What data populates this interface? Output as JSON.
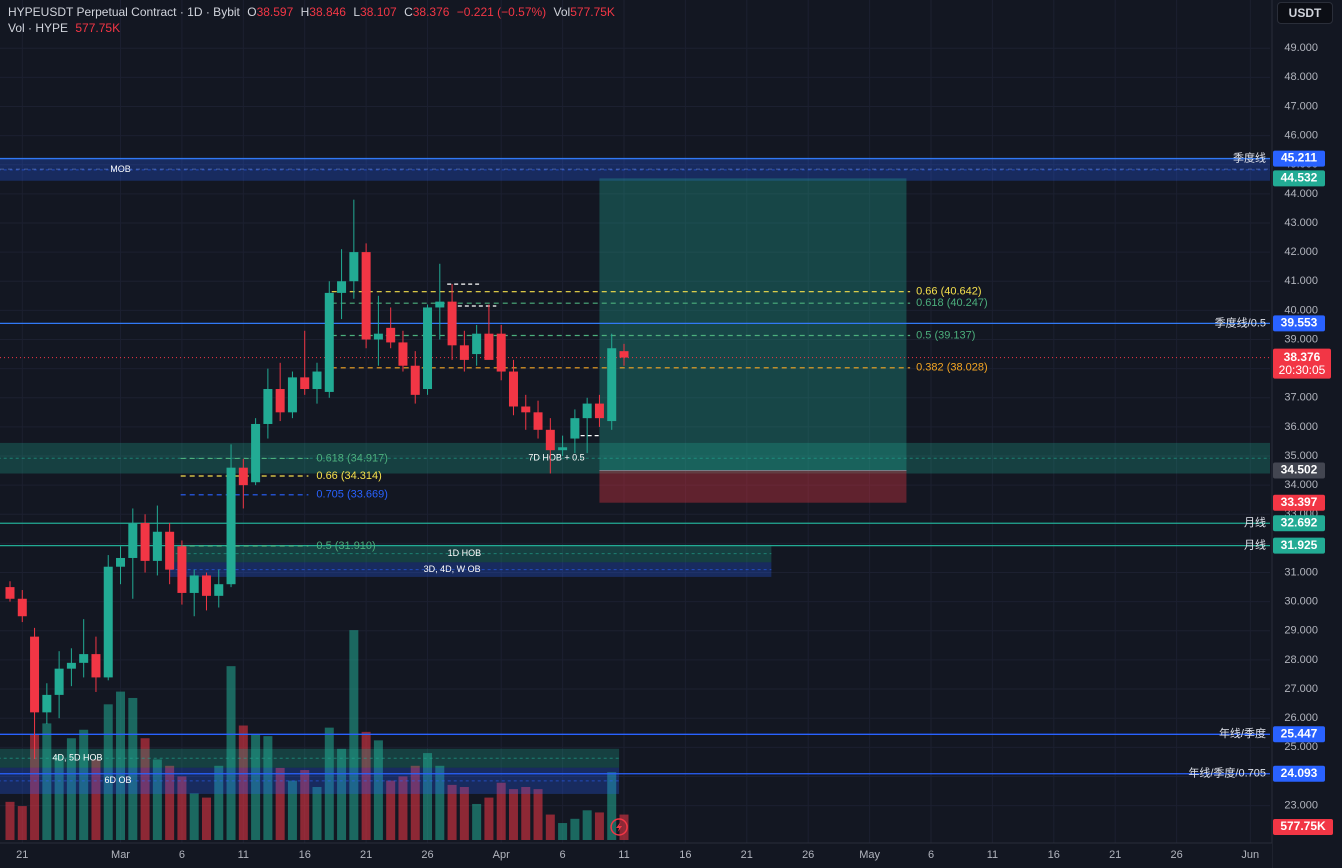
{
  "header": {
    "symbol": "HYPEUSDT Perpetual Contract · 1D · Bybit",
    "open_label": "O",
    "open": "38.597",
    "high_label": "H",
    "high": "38.846",
    "low_label": "L",
    "low": "38.107",
    "close_label": "C",
    "close": "38.376",
    "change": "−0.221 (−0.57%)",
    "vol_label": "Vol",
    "vol": "577.75K",
    "vol_series": "Vol · HYPE",
    "vol_series_value": "577.75K"
  },
  "currency_button": "USDT",
  "colors": {
    "up": "#22ab94",
    "down": "#f23645",
    "background": "#131722",
    "blue_line": "#3179f5",
    "green_line": "#22ab94",
    "fib_yellow": "#f5e04c",
    "fib_orange": "#f5a623",
    "fib_green": "#4caf7d",
    "fib_blue": "#2962ff"
  },
  "chart_data": {
    "type": "candlestick",
    "timeframe": "1D",
    "y_axis": {
      "min": 23,
      "max": 49.5,
      "ticks": [
        "49.000",
        "48.000",
        "47.000",
        "46.000",
        "45.000",
        "44.000",
        "43.000",
        "42.000",
        "41.000",
        "40.000",
        "39.000",
        "38.000",
        "37.000",
        "36.000",
        "35.000",
        "34.000",
        "33.000",
        "32.000",
        "31.000",
        "30.000",
        "29.000",
        "28.000",
        "27.000",
        "26.000",
        "25.000",
        "24.000",
        "23.000"
      ]
    },
    "x_axis": {
      "start_date": "2025-02-20",
      "ticks": [
        {
          "d": 1,
          "label": "21"
        },
        {
          "d": 9,
          "label": "Mar"
        },
        {
          "d": 14,
          "label": "6"
        },
        {
          "d": 19,
          "label": "11"
        },
        {
          "d": 24,
          "label": "16"
        },
        {
          "d": 29,
          "label": "21"
        },
        {
          "d": 34,
          "label": "26"
        },
        {
          "d": 40,
          "label": "Apr"
        },
        {
          "d": 45,
          "label": "6"
        },
        {
          "d": 50,
          "label": "11"
        },
        {
          "d": 55,
          "label": "16"
        },
        {
          "d": 60,
          "label": "21"
        },
        {
          "d": 65,
          "label": "26"
        },
        {
          "d": 70,
          "label": "May"
        },
        {
          "d": 75,
          "label": "6"
        },
        {
          "d": 80,
          "label": "11"
        },
        {
          "d": 85,
          "label": "16"
        },
        {
          "d": 90,
          "label": "21"
        },
        {
          "d": 95,
          "label": "26"
        },
        {
          "d": 101,
          "label": "Jun"
        }
      ]
    },
    "candles": [
      {
        "d": 0,
        "o": 30.5,
        "h": 30.7,
        "l": 30.0,
        "c": 30.1
      },
      {
        "d": 1,
        "o": 30.1,
        "h": 30.4,
        "l": 29.3,
        "c": 29.5
      },
      {
        "d": 2,
        "o": 28.8,
        "h": 29.1,
        "l": 24.6,
        "c": 26.2
      },
      {
        "d": 3,
        "o": 26.2,
        "h": 27.2,
        "l": 25.8,
        "c": 26.8
      },
      {
        "d": 4,
        "o": 26.8,
        "h": 28.3,
        "l": 26.0,
        "c": 27.7
      },
      {
        "d": 5,
        "o": 27.7,
        "h": 28.4,
        "l": 27.1,
        "c": 27.9
      },
      {
        "d": 6,
        "o": 27.9,
        "h": 29.4,
        "l": 27.4,
        "c": 28.2
      },
      {
        "d": 7,
        "o": 28.2,
        "h": 28.8,
        "l": 26.9,
        "c": 27.4
      },
      {
        "d": 8,
        "o": 27.4,
        "h": 31.6,
        "l": 27.3,
        "c": 31.2
      },
      {
        "d": 9,
        "o": 31.2,
        "h": 31.9,
        "l": 30.6,
        "c": 31.5
      },
      {
        "d": 10,
        "o": 31.5,
        "h": 33.2,
        "l": 30.1,
        "c": 32.7
      },
      {
        "d": 11,
        "o": 32.7,
        "h": 33.0,
        "l": 31.0,
        "c": 31.4
      },
      {
        "d": 12,
        "o": 31.4,
        "h": 33.3,
        "l": 30.9,
        "c": 32.4
      },
      {
        "d": 13,
        "o": 32.4,
        "h": 32.7,
        "l": 30.6,
        "c": 31.1
      },
      {
        "d": 14,
        "o": 31.9,
        "h": 32.1,
        "l": 29.9,
        "c": 30.3
      },
      {
        "d": 15,
        "o": 30.3,
        "h": 31.1,
        "l": 29.5,
        "c": 30.9
      },
      {
        "d": 16,
        "o": 30.9,
        "h": 31.0,
        "l": 29.7,
        "c": 30.2
      },
      {
        "d": 17,
        "o": 30.2,
        "h": 31.1,
        "l": 29.8,
        "c": 30.6
      },
      {
        "d": 18,
        "o": 30.6,
        "h": 35.4,
        "l": 30.5,
        "c": 34.6
      },
      {
        "d": 19,
        "o": 34.6,
        "h": 34.9,
        "l": 33.2,
        "c": 34.0
      },
      {
        "d": 20,
        "o": 34.1,
        "h": 36.3,
        "l": 34.0,
        "c": 36.1
      },
      {
        "d": 21,
        "o": 36.1,
        "h": 38.0,
        "l": 35.6,
        "c": 37.3
      },
      {
        "d": 22,
        "o": 37.3,
        "h": 38.2,
        "l": 36.2,
        "c": 36.5
      },
      {
        "d": 23,
        "o": 36.5,
        "h": 37.9,
        "l": 36.3,
        "c": 37.7
      },
      {
        "d": 24,
        "o": 37.7,
        "h": 39.3,
        "l": 37.1,
        "c": 37.3
      },
      {
        "d": 25,
        "o": 37.3,
        "h": 38.2,
        "l": 36.8,
        "c": 37.9
      },
      {
        "d": 26,
        "o": 37.2,
        "h": 41.0,
        "l": 37.0,
        "c": 40.6
      },
      {
        "d": 27,
        "o": 40.6,
        "h": 42.1,
        "l": 39.7,
        "c": 41.0
      },
      {
        "d": 28,
        "o": 41.0,
        "h": 43.8,
        "l": 40.4,
        "c": 42.0
      },
      {
        "d": 29,
        "o": 42.0,
        "h": 42.3,
        "l": 38.7,
        "c": 39.0
      },
      {
        "d": 30,
        "o": 39.0,
        "h": 40.5,
        "l": 38.1,
        "c": 39.2
      },
      {
        "d": 31,
        "o": 39.4,
        "h": 40.1,
        "l": 38.7,
        "c": 38.9
      },
      {
        "d": 32,
        "o": 38.9,
        "h": 39.3,
        "l": 37.9,
        "c": 38.1
      },
      {
        "d": 33,
        "o": 38.1,
        "h": 38.6,
        "l": 36.8,
        "c": 37.1
      },
      {
        "d": 34,
        "o": 37.3,
        "h": 40.2,
        "l": 37.1,
        "c": 40.1
      },
      {
        "d": 35,
        "o": 40.1,
        "h": 41.6,
        "l": 39.0,
        "c": 40.3
      },
      {
        "d": 36,
        "o": 40.3,
        "h": 40.9,
        "l": 38.3,
        "c": 38.8
      },
      {
        "d": 37,
        "o": 38.8,
        "h": 39.3,
        "l": 37.9,
        "c": 38.3
      },
      {
        "d": 38,
        "o": 38.5,
        "h": 39.5,
        "l": 38.1,
        "c": 39.2
      },
      {
        "d": 39,
        "o": 39.2,
        "h": 40.2,
        "l": 38.4,
        "c": 38.3
      },
      {
        "d": 40,
        "o": 39.2,
        "h": 39.5,
        "l": 37.6,
        "c": 37.9
      },
      {
        "d": 41,
        "o": 37.9,
        "h": 38.3,
        "l": 36.4,
        "c": 36.7
      },
      {
        "d": 42,
        "o": 36.7,
        "h": 37.1,
        "l": 35.9,
        "c": 36.5
      },
      {
        "d": 43,
        "o": 36.5,
        "h": 36.9,
        "l": 35.6,
        "c": 35.9
      },
      {
        "d": 44,
        "o": 35.9,
        "h": 36.3,
        "l": 34.4,
        "c": 35.2
      },
      {
        "d": 45,
        "o": 35.2,
        "h": 35.7,
        "l": 35.0,
        "c": 35.3
      },
      {
        "d": 46,
        "o": 35.6,
        "h": 36.6,
        "l": 35.1,
        "c": 36.3
      },
      {
        "d": 47,
        "o": 36.3,
        "h": 37.0,
        "l": 35.1,
        "c": 36.8
      },
      {
        "d": 48,
        "o": 36.8,
        "h": 37.1,
        "l": 36.0,
        "c": 36.3
      },
      {
        "d": 49,
        "o": 36.2,
        "h": 39.2,
        "l": 35.9,
        "c": 38.7
      },
      {
        "d": 50,
        "o": 38.6,
        "h": 38.85,
        "l": 38.1,
        "c": 38.38
      }
    ],
    "volume": [
      {
        "d": 0,
        "v": 0.18
      },
      {
        "d": 1,
        "v": 0.16
      },
      {
        "d": 2,
        "v": 0.5
      },
      {
        "d": 3,
        "v": 0.55
      },
      {
        "d": 4,
        "v": 0.4
      },
      {
        "d": 5,
        "v": 0.48
      },
      {
        "d": 6,
        "v": 0.52
      },
      {
        "d": 7,
        "v": 0.38
      },
      {
        "d": 8,
        "v": 0.64
      },
      {
        "d": 9,
        "v": 0.7
      },
      {
        "d": 10,
        "v": 0.67
      },
      {
        "d": 11,
        "v": 0.48
      },
      {
        "d": 12,
        "v": 0.38
      },
      {
        "d": 13,
        "v": 0.35
      },
      {
        "d": 14,
        "v": 0.3
      },
      {
        "d": 15,
        "v": 0.22
      },
      {
        "d": 16,
        "v": 0.2
      },
      {
        "d": 17,
        "v": 0.35
      },
      {
        "d": 18,
        "v": 0.82
      },
      {
        "d": 19,
        "v": 0.54
      },
      {
        "d": 20,
        "v": 0.5
      },
      {
        "d": 21,
        "v": 0.49
      },
      {
        "d": 22,
        "v": 0.34
      },
      {
        "d": 23,
        "v": 0.28
      },
      {
        "d": 24,
        "v": 0.33
      },
      {
        "d": 25,
        "v": 0.25
      },
      {
        "d": 26,
        "v": 0.53
      },
      {
        "d": 27,
        "v": 0.43
      },
      {
        "d": 28,
        "v": 0.99
      },
      {
        "d": 29,
        "v": 0.51
      },
      {
        "d": 30,
        "v": 0.47
      },
      {
        "d": 31,
        "v": 0.28
      },
      {
        "d": 32,
        "v": 0.3
      },
      {
        "d": 33,
        "v": 0.35
      },
      {
        "d": 34,
        "v": 0.41
      },
      {
        "d": 35,
        "v": 0.35
      },
      {
        "d": 36,
        "v": 0.26
      },
      {
        "d": 37,
        "v": 0.25
      },
      {
        "d": 38,
        "v": 0.17
      },
      {
        "d": 39,
        "v": 0.2
      },
      {
        "d": 40,
        "v": 0.27
      },
      {
        "d": 41,
        "v": 0.24
      },
      {
        "d": 42,
        "v": 0.25
      },
      {
        "d": 43,
        "v": 0.24
      },
      {
        "d": 44,
        "v": 0.12
      },
      {
        "d": 45,
        "v": 0.08
      },
      {
        "d": 46,
        "v": 0.1
      },
      {
        "d": 47,
        "v": 0.14
      },
      {
        "d": 48,
        "v": 0.13
      },
      {
        "d": 49,
        "v": 0.32
      },
      {
        "d": 50,
        "v": 0.12
      }
    ],
    "horizontal_lines": [
      {
        "price": 45.211,
        "label": "季度线",
        "color": "#3179f5",
        "dash": false,
        "price_tag": "45.211"
      },
      {
        "price": 39.553,
        "label": "季度线/0.5",
        "color": "#3179f5",
        "dash": false,
        "price_tag": "39.553"
      },
      {
        "price": 32.692,
        "label": "月线",
        "color": "#22ab94",
        "dash": false,
        "price_tag": "32.692"
      },
      {
        "price": 31.925,
        "label": "月线",
        "color": "#22ab94",
        "dash": false,
        "price_tag": "31.925"
      },
      {
        "price": 25.447,
        "label": "年线/季度",
        "color": "#2962ff",
        "dash": false,
        "price_tag": "25.447"
      },
      {
        "price": 24.093,
        "label": "年线/季度/0.705",
        "color": "#2962ff",
        "dash": false,
        "price_tag": "24.093"
      }
    ],
    "fib_levels": [
      {
        "price": 40.642,
        "label": "0.66 (40.642)",
        "color": "#f5e04c",
        "d0": 26.2,
        "d1": 73.3
      },
      {
        "price": 40.247,
        "label": "0.618 (40.247)",
        "color": "#4caf7d",
        "d0": 26.2,
        "d1": 73.3
      },
      {
        "price": 39.137,
        "label": "0.5 (39.137)",
        "color": "#4caf7d",
        "d0": 26.2,
        "d1": 73.3
      },
      {
        "price": 38.028,
        "label": "0.382 (38.028)",
        "color": "#f5a623",
        "d0": 26.2,
        "d1": 73.3
      },
      {
        "price": 34.917,
        "label": "0.618 (34.917)",
        "color": "#4caf7d",
        "d0": 13.9,
        "d1": 24.3
      },
      {
        "price": 34.314,
        "label": "0.66 (34.314)",
        "color": "#f5e04c",
        "d0": 13.9,
        "d1": 24.3
      },
      {
        "price": 33.669,
        "label": "0.705 (33.669)",
        "color": "#2962ff",
        "d0": 13.9,
        "d1": 24.3
      },
      {
        "price": 31.91,
        "label": "0.5 (31.910)",
        "color": "#4caf7d",
        "d0": 13.9,
        "d1": 24.3
      }
    ],
    "zones": [
      {
        "label": "MOB",
        "top": 45.2,
        "bottom": 44.45,
        "d0": -1,
        "d1": 104,
        "color": "#2962ff",
        "label_d": 9
      },
      {
        "label": "7D HOB + 0.5",
        "top": 35.45,
        "bottom": 34.4,
        "d0": -1,
        "d1": 104,
        "color": "#22ab94",
        "label_d": 44.5
      },
      {
        "label": "1D HOB",
        "top": 31.95,
        "bottom": 31.35,
        "d0": 13,
        "d1": 62,
        "color": "#22ab94",
        "label_d": 37
      },
      {
        "label": "3D, 4D, W OB",
        "top": 31.35,
        "bottom": 30.85,
        "d0": 13,
        "d1": 62,
        "color": "#2962ff",
        "label_d": 36
      },
      {
        "label": "4D, 5D HOB",
        "top": 24.95,
        "bottom": 24.3,
        "d0": -1,
        "d1": 49.6,
        "color": "#22ab94",
        "label_d": 5.5
      },
      {
        "label": "6D OB",
        "top": 24.3,
        "bottom": 23.4,
        "d0": -1,
        "d1": 49.6,
        "color": "#2962ff",
        "label_d": 8.8
      }
    ],
    "position": {
      "entry": 34.502,
      "target": 44.532,
      "stop": 33.397,
      "d0": 48,
      "d1": 73
    },
    "price_tags": [
      {
        "price": 44.532,
        "text": "44.532",
        "bg": "#22ab94"
      },
      {
        "price": 34.502,
        "text": "34.502",
        "bg": "#434651"
      },
      {
        "price": 33.397,
        "text": "33.397",
        "bg": "#f23645"
      }
    ],
    "last_price": {
      "price": 38.376,
      "text": "38.376",
      "countdown": "20:30:05"
    },
    "volume_tag": "577.75K",
    "high_marks": [
      {
        "price": 40.9,
        "d0": 35.6,
        "d1": 38.2
      },
      {
        "price": 40.15,
        "d0": 35.9,
        "d1": 39.6
      },
      {
        "price": 35.7,
        "d0": 45.9,
        "d1": 48
      }
    ]
  }
}
